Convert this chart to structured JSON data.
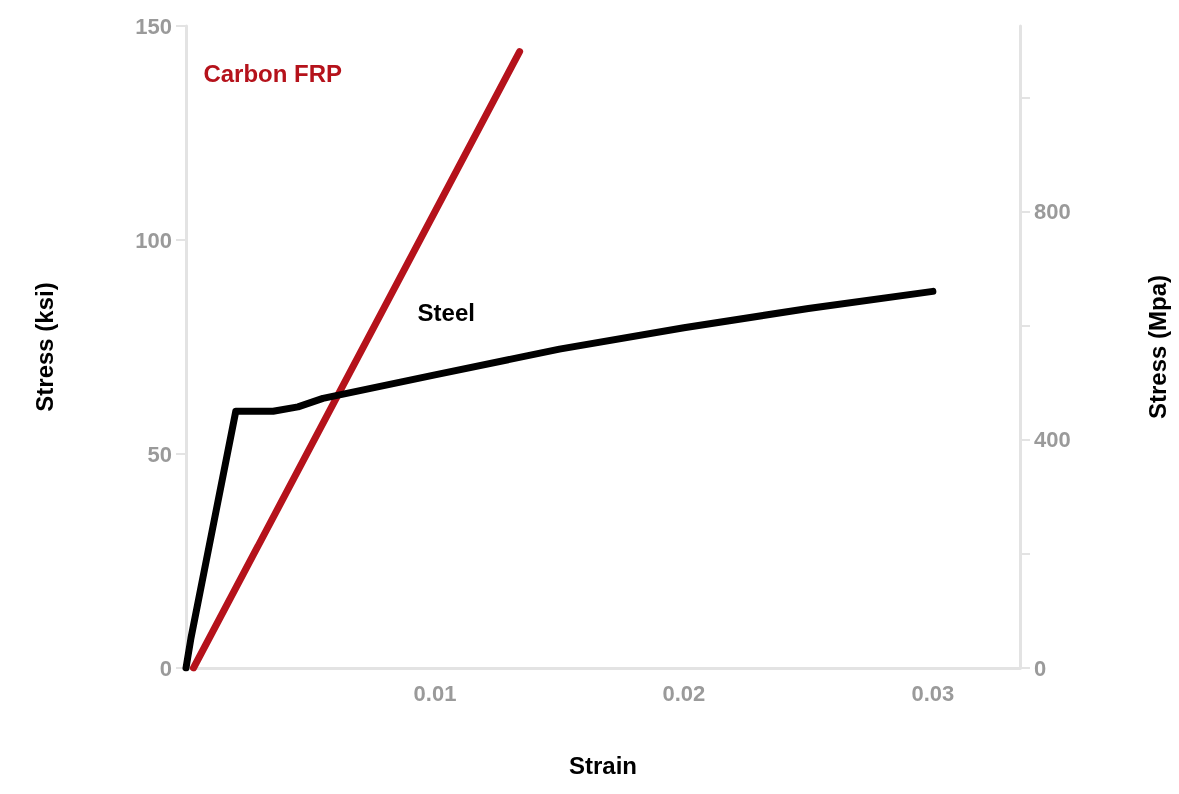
{
  "chart_data": {
    "type": "line",
    "xlabel": "Strain",
    "ylabel": "Stress (ksi)",
    "y2label": "Stress (Mpa)",
    "xlim": [
      0,
      0.0335
    ],
    "xticks": [
      0.01,
      0.02,
      0.03
    ],
    "ylim": [
      0,
      150
    ],
    "yticks": [
      0,
      50,
      100,
      150
    ],
    "y2lim": [
      0,
      1126
    ],
    "y2ticks": [
      0,
      {
        "value": 200,
        "label": null
      },
      400,
      {
        "value": 600,
        "label": null
      },
      800,
      {
        "value": 1000,
        "label": null
      }
    ],
    "grid": false,
    "legend": false,
    "marker": "none",
    "line_style": "solid",
    "series": [
      {
        "name": "Carbon FRP",
        "color": "#b5121b",
        "x": [
          0.0003,
          0.0134
        ],
        "values": [
          0,
          144
        ]
      },
      {
        "name": "Steel",
        "color": "#000000",
        "x": [
          0,
          0.0002,
          0.002,
          0.0035,
          0.0045,
          0.0055,
          0.01,
          0.015,
          0.02,
          0.025,
          0.03
        ],
        "values": [
          0,
          7,
          60,
          60,
          61,
          63,
          68.5,
          74.5,
          79.5,
          84,
          88
        ]
      }
    ]
  }
}
